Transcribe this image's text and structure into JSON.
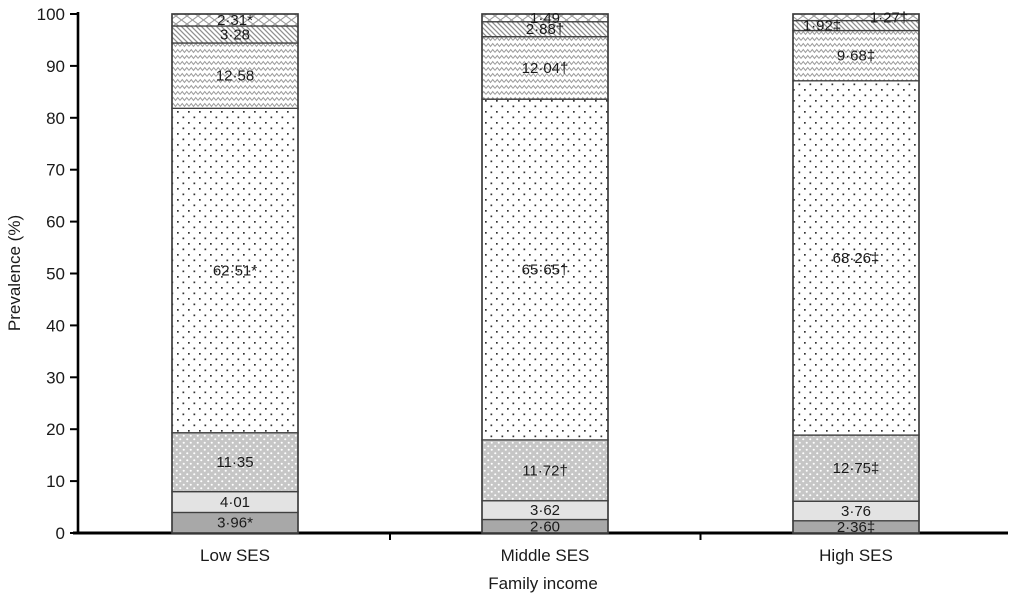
{
  "chart_data": {
    "type": "bar",
    "variant": "stacked-vertical",
    "title": "",
    "xlabel": "Family income",
    "ylabel": "Prevalence (%)",
    "ylim": [
      0,
      100
    ],
    "yticks": [
      0,
      10,
      20,
      30,
      40,
      50,
      60,
      70,
      80,
      90,
      100
    ],
    "grid": false,
    "legend": "none",
    "decimal_separator": "·",
    "categories": [
      "Low SES",
      "Middle SES",
      "High SES"
    ],
    "series": [
      {
        "name": "segment-1-solid-dark-gray",
        "pattern": "solid-dark",
        "values": [
          3.96,
          2.6,
          2.36
        ],
        "labels": [
          "3·96*",
          "2·60",
          "2·36‡"
        ],
        "label_dx": [
          0,
          0,
          0
        ]
      },
      {
        "name": "segment-2-solid-light-gray",
        "pattern": "solid-light",
        "values": [
          4.01,
          3.62,
          3.76
        ],
        "labels": [
          "4·01",
          "3·62",
          "3·76"
        ],
        "label_dx": [
          0,
          0,
          0
        ]
      },
      {
        "name": "segment-3-white-dots-on-gray",
        "pattern": "dots-on-gray",
        "values": [
          11.35,
          11.72,
          12.75
        ],
        "labels": [
          "11·35",
          "11·72†",
          "12·75‡"
        ],
        "label_dx": [
          0,
          0,
          0
        ]
      },
      {
        "name": "segment-4-black-dots-on-white",
        "pattern": "sparse-dots",
        "values": [
          62.51,
          65.65,
          68.26
        ],
        "labels": [
          "62·51*",
          "65·65†",
          "68·26‡"
        ],
        "label_dx": [
          0,
          0,
          0
        ]
      },
      {
        "name": "segment-5-zigzag-waves",
        "pattern": "zigzag",
        "values": [
          12.58,
          12.04,
          9.68
        ],
        "labels": [
          "12·58",
          "12·04†",
          "9·68‡"
        ],
        "label_dx": [
          0,
          0,
          0
        ]
      },
      {
        "name": "segment-6-diagonal-hatch",
        "pattern": "diag-hatch",
        "values": [
          3.28,
          2.88,
          1.92
        ],
        "labels": [
          "3·28",
          "2·88†",
          "1·92‡"
        ],
        "label_dx": [
          0,
          0,
          -34
        ]
      },
      {
        "name": "segment-7-diamond-crosshatch",
        "pattern": "crosshatch",
        "values": [
          2.31,
          1.49,
          1.27
        ],
        "labels": [
          "2·31*",
          "1·49",
          "1·27†"
        ],
        "label_dx": [
          0,
          0,
          33
        ]
      }
    ],
    "colors": {
      "bar_border": "#3f3f3f",
      "axis": "#000000",
      "text": "#1a1a1a",
      "solid_dark": "#a8a8a8",
      "solid_light": "#e3e3e3",
      "dots_gray_bg": "#c6c6c6",
      "pattern_line": "#8f8f8f",
      "sparse_dot": "#333333"
    }
  }
}
